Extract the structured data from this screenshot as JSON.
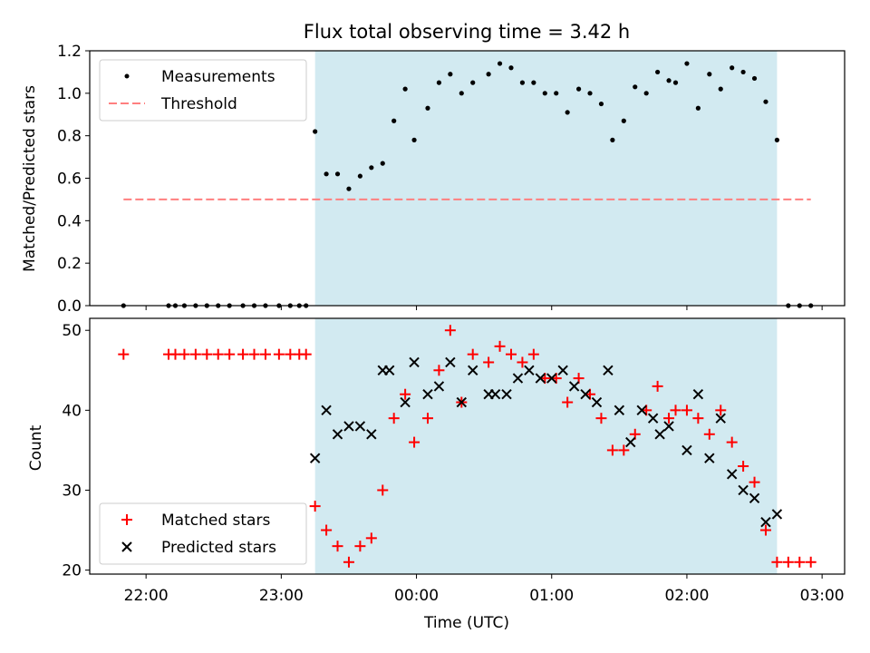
{
  "chart_data": [
    {
      "type": "scatter",
      "title": "Flux total observing time = 3.42 h",
      "ylabel": "Matched/Predicted stars",
      "xlabel": "",
      "xlim": [
        "21:35",
        "03:10"
      ],
      "ylim": [
        0,
        1.2
      ],
      "yticks": [
        "0.0",
        "0.2",
        "0.4",
        "0.6",
        "0.8",
        "1.0",
        "1.2"
      ],
      "shaded_interval": [
        "23:15",
        "02:40"
      ],
      "shade_color": "#add8e6",
      "threshold": 0.5,
      "threshold_color": "#ff7f7f",
      "legend_placement": "top-left",
      "series": [
        {
          "name": "Measurements",
          "marker": "dot",
          "color": "#000000",
          "x": [
            "21:50",
            "22:10",
            "22:13",
            "22:17",
            "22:22",
            "22:27",
            "22:32",
            "22:37",
            "22:43",
            "22:48",
            "22:53",
            "22:59",
            "23:04",
            "23:08",
            "23:11",
            "23:15",
            "23:20",
            "23:25",
            "23:30",
            "23:35",
            "23:40",
            "23:45",
            "23:50",
            "23:55",
            "23:59",
            "00:05",
            "00:10",
            "00:15",
            "00:20",
            "00:25",
            "00:32",
            "00:37",
            "00:42",
            "00:47",
            "00:52",
            "00:57",
            "01:02",
            "01:07",
            "01:12",
            "01:17",
            "01:22",
            "01:27",
            "01:32",
            "01:37",
            "01:42",
            "01:47",
            "01:52",
            "01:55",
            "02:00",
            "02:05",
            "02:10",
            "02:15",
            "02:20",
            "02:25",
            "02:30",
            "02:35",
            "02:40",
            "02:45",
            "02:50",
            "02:55"
          ],
          "y": [
            0,
            0,
            0,
            0,
            0,
            0,
            0,
            0,
            0,
            0,
            0,
            0,
            0,
            0,
            0,
            0.82,
            0.62,
            0.62,
            0.55,
            0.61,
            0.65,
            0.67,
            0.87,
            1.02,
            0.78,
            0.93,
            1.05,
            1.09,
            1.0,
            1.05,
            1.09,
            1.14,
            1.12,
            1.05,
            1.05,
            1.0,
            1.0,
            0.91,
            1.02,
            1.0,
            0.95,
            0.78,
            0.87,
            1.03,
            1.0,
            1.1,
            1.06,
            1.05,
            1.14,
            0.93,
            1.09,
            1.02,
            1.12,
            1.1,
            1.07,
            0.96,
            0.78,
            0,
            0,
            0
          ]
        },
        {
          "name": "Threshold",
          "style": "dashed",
          "color": "#ff7f7f",
          "x": [
            "21:50",
            "02:55"
          ],
          "y": [
            0.5,
            0.5
          ]
        }
      ]
    },
    {
      "type": "scatter",
      "title": "",
      "xlabel": "Time (UTC)",
      "ylabel": "Count",
      "xlim": [
        "21:35",
        "03:10"
      ],
      "ylim": [
        19.5,
        51.5
      ],
      "xticks": [
        "22:00",
        "23:00",
        "00:00",
        "01:00",
        "02:00",
        "03:00"
      ],
      "yticks": [
        "20",
        "30",
        "40",
        "50"
      ],
      "shaded_interval": [
        "23:15",
        "02:40"
      ],
      "shade_color": "#add8e6",
      "legend_placement": "bottom-left",
      "series": [
        {
          "name": "Matched stars",
          "marker": "plus",
          "color": "#ff0000",
          "x": [
            "21:50",
            "22:10",
            "22:13",
            "22:17",
            "22:22",
            "22:27",
            "22:32",
            "22:37",
            "22:43",
            "22:48",
            "22:53",
            "22:59",
            "23:04",
            "23:08",
            "23:11",
            "23:15",
            "23:20",
            "23:25",
            "23:30",
            "23:35",
            "23:40",
            "23:45",
            "23:50",
            "23:55",
            "23:59",
            "00:05",
            "00:10",
            "00:15",
            "00:20",
            "00:25",
            "00:32",
            "00:37",
            "00:42",
            "00:47",
            "00:52",
            "00:57",
            "01:02",
            "01:07",
            "01:12",
            "01:17",
            "01:22",
            "01:27",
            "01:32",
            "01:37",
            "01:42",
            "01:47",
            "01:52",
            "01:55",
            "02:00",
            "02:05",
            "02:10",
            "02:15",
            "02:20",
            "02:25",
            "02:30",
            "02:35",
            "02:40",
            "02:45",
            "02:50",
            "02:55"
          ],
          "y": [
            47,
            47,
            47,
            47,
            47,
            47,
            47,
            47,
            47,
            47,
            47,
            47,
            47,
            47,
            47,
            28,
            25,
            23,
            21,
            23,
            24,
            30,
            39,
            42,
            36,
            39,
            45,
            50,
            41,
            47,
            46,
            48,
            47,
            46,
            47,
            44,
            44,
            41,
            44,
            42,
            39,
            35,
            35,
            37,
            40,
            43,
            39,
            40,
            40,
            39,
            37,
            40,
            36,
            33,
            31,
            25,
            21,
            21,
            21,
            21
          ]
        },
        {
          "name": "Predicted stars",
          "marker": "x",
          "color": "#000000",
          "x": [
            "23:15",
            "23:20",
            "23:25",
            "23:30",
            "23:35",
            "23:40",
            "23:45",
            "23:48",
            "23:55",
            "23:59",
            "00:05",
            "00:10",
            "00:15",
            "00:20",
            "00:25",
            "00:32",
            "00:35",
            "00:40",
            "00:45",
            "00:50",
            "00:55",
            "01:00",
            "01:05",
            "01:10",
            "01:15",
            "01:20",
            "01:25",
            "01:30",
            "01:35",
            "01:40",
            "01:45",
            "01:48",
            "01:52",
            "02:00",
            "02:05",
            "02:10",
            "02:15",
            "02:20",
            "02:25",
            "02:30",
            "02:35",
            "02:40"
          ],
          "y": [
            34,
            40,
            37,
            38,
            38,
            37,
            45,
            45,
            41,
            46,
            42,
            43,
            46,
            41,
            45,
            42,
            42,
            42,
            44,
            45,
            44,
            44,
            45,
            43,
            42,
            41,
            45,
            40,
            36,
            40,
            39,
            37,
            38,
            35,
            42,
            34,
            39,
            32,
            30,
            29,
            26,
            27
          ]
        }
      ]
    }
  ]
}
